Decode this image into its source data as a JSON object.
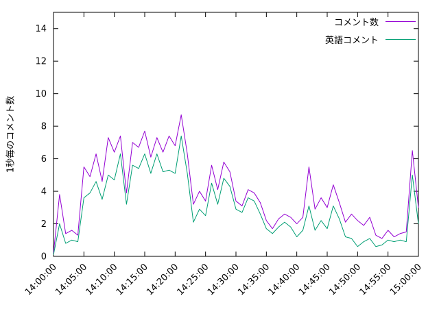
{
  "chart_data": {
    "type": "line",
    "title": "",
    "xlabel": "",
    "ylabel": "1秒毎のコメント数",
    "x_start": "14:00:00",
    "x_end": "15:00:00",
    "x_interval_minutes": 1,
    "x_tick_labels": [
      "14:00:00",
      "14:05:00",
      "14:10:00",
      "14:15:00",
      "14:20:00",
      "14:25:00",
      "14:30:00",
      "14:35:00",
      "14:40:00",
      "14:45:00",
      "14:50:00",
      "14:55:00",
      "15:00:00"
    ],
    "y_ticks": [
      0,
      2,
      4,
      6,
      8,
      10,
      12,
      14
    ],
    "ylim": [
      0,
      15
    ],
    "grid": false,
    "legend_position": "top-right",
    "series": [
      {
        "name": "コメント数",
        "color": "#9400D3",
        "values": [
          0.2,
          3.8,
          1.4,
          1.6,
          1.3,
          5.5,
          4.9,
          6.3,
          4.6,
          7.3,
          6.4,
          7.4,
          3.9,
          7.0,
          6.7,
          7.7,
          6.1,
          7.3,
          6.4,
          7.4,
          6.8,
          8.7,
          6.3,
          3.2,
          4.0,
          3.4,
          5.6,
          4.1,
          5.8,
          5.2,
          3.4,
          3.1,
          4.1,
          3.9,
          3.3,
          2.2,
          1.7,
          2.3,
          2.6,
          2.4,
          2.0,
          2.4,
          5.5,
          2.9,
          3.6,
          3.0,
          4.4,
          3.3,
          2.1,
          2.6,
          2.2,
          1.9,
          2.4,
          1.3,
          1.1,
          1.6,
          1.2,
          1.4,
          1.5,
          6.5,
          3.0
        ]
      },
      {
        "name": "英語コメント",
        "color": "#009E73",
        "values": [
          0.1,
          2.0,
          0.8,
          1.0,
          0.9,
          3.6,
          3.9,
          4.6,
          3.5,
          5.0,
          4.7,
          6.3,
          3.2,
          5.6,
          5.4,
          6.3,
          5.1,
          6.3,
          5.2,
          5.3,
          5.1,
          7.4,
          5.1,
          2.1,
          2.9,
          2.5,
          4.5,
          3.2,
          4.8,
          4.3,
          2.9,
          2.7,
          3.6,
          3.4,
          2.6,
          1.7,
          1.4,
          1.8,
          2.1,
          1.8,
          1.2,
          1.6,
          3.1,
          1.6,
          2.2,
          1.7,
          3.1,
          2.3,
          1.2,
          1.1,
          0.6,
          0.9,
          1.1,
          0.6,
          0.7,
          1.0,
          0.9,
          1.0,
          0.9,
          5.0,
          2.0
        ]
      }
    ]
  }
}
